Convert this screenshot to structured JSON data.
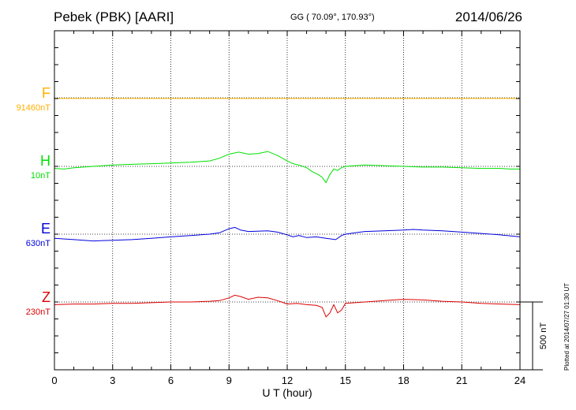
{
  "header": {
    "station": "Pebek (PBK)  [AARI]",
    "coords": "GG ( 70.09°, 170.93°)",
    "date": "2014/06/26"
  },
  "side_note": "Plotted at 2014/07/27 01:30 UT",
  "chart_data": {
    "type": "line",
    "title": "Pebek (PBK)  [AARI]",
    "xlabel": "U T (hour)",
    "xlim": [
      0,
      24
    ],
    "x_ticks": [
      "0",
      "3",
      "6",
      "9",
      "12",
      "15",
      "18",
      "21",
      "24"
    ],
    "grid": true,
    "scale_bar": {
      "label": "500 nT",
      "value": 500
    },
    "series": [
      {
        "name": "F",
        "baseline_label": "91460nT",
        "color": "#ffb000",
        "x": [
          0,
          23,
          24
        ],
        "values": [
          -5,
          -5,
          -5
        ]
      },
      {
        "name": "H",
        "baseline_label": "10nT",
        "color": "#00e000",
        "x": [
          0,
          0.5,
          1,
          1.5,
          2,
          3,
          4,
          5,
          6,
          7,
          8,
          8.5,
          9,
          9.5,
          10,
          10.5,
          11,
          11.5,
          12,
          12.3,
          12.6,
          13,
          13.3,
          13.6,
          13.8,
          14,
          14.2,
          14.4,
          14.6,
          14.8,
          15,
          15.5,
          16,
          17,
          18,
          19,
          20,
          21,
          22,
          23,
          23.5,
          24
        ],
        "values": [
          -15,
          -20,
          -10,
          -5,
          0,
          10,
          15,
          20,
          25,
          30,
          40,
          60,
          90,
          105,
          90,
          95,
          110,
          80,
          40,
          20,
          10,
          -10,
          -40,
          -60,
          -80,
          -120,
          -60,
          -20,
          -30,
          -10,
          0,
          5,
          10,
          5,
          0,
          -5,
          -5,
          -10,
          -15,
          -15,
          -20,
          -20
        ]
      },
      {
        "name": "E",
        "baseline_label": "630nT",
        "color": "#0000dd",
        "x": [
          0,
          1,
          2,
          3,
          4,
          5,
          6,
          7,
          8,
          8.5,
          9,
          9.3,
          9.6,
          10,
          11,
          11.5,
          12,
          12.3,
          12.6,
          13,
          13.5,
          14,
          14.5,
          14.8,
          15,
          15.5,
          16,
          17,
          18,
          18.5,
          19,
          20,
          21,
          22,
          23,
          24
        ],
        "values": [
          -30,
          -40,
          -50,
          -45,
          -40,
          -30,
          -20,
          -10,
          0,
          10,
          40,
          50,
          30,
          20,
          25,
          15,
          -5,
          -20,
          -10,
          -25,
          -20,
          -30,
          -40,
          -10,
          0,
          10,
          20,
          25,
          30,
          35,
          30,
          25,
          15,
          5,
          -5,
          -20
        ]
      },
      {
        "name": "Z",
        "baseline_label": "230nT",
        "color": "#dd0000",
        "x": [
          0,
          1,
          2,
          3,
          4,
          5,
          6,
          7,
          8,
          8.5,
          9,
          9.3,
          9.6,
          10,
          10.5,
          11,
          11.5,
          11.8,
          12,
          12.5,
          13,
          13.5,
          13.8,
          14,
          14.2,
          14.4,
          14.6,
          14.8,
          15,
          15.5,
          16,
          17,
          18,
          19,
          20,
          21,
          22,
          23,
          24
        ],
        "values": [
          -20,
          -15,
          -15,
          -10,
          -10,
          -5,
          0,
          0,
          5,
          10,
          30,
          50,
          40,
          20,
          35,
          30,
          10,
          -5,
          -15,
          -10,
          -20,
          -25,
          -40,
          -110,
          -80,
          -20,
          -80,
          -60,
          -10,
          -5,
          0,
          10,
          20,
          15,
          5,
          0,
          -10,
          -15,
          -20
        ]
      }
    ]
  }
}
